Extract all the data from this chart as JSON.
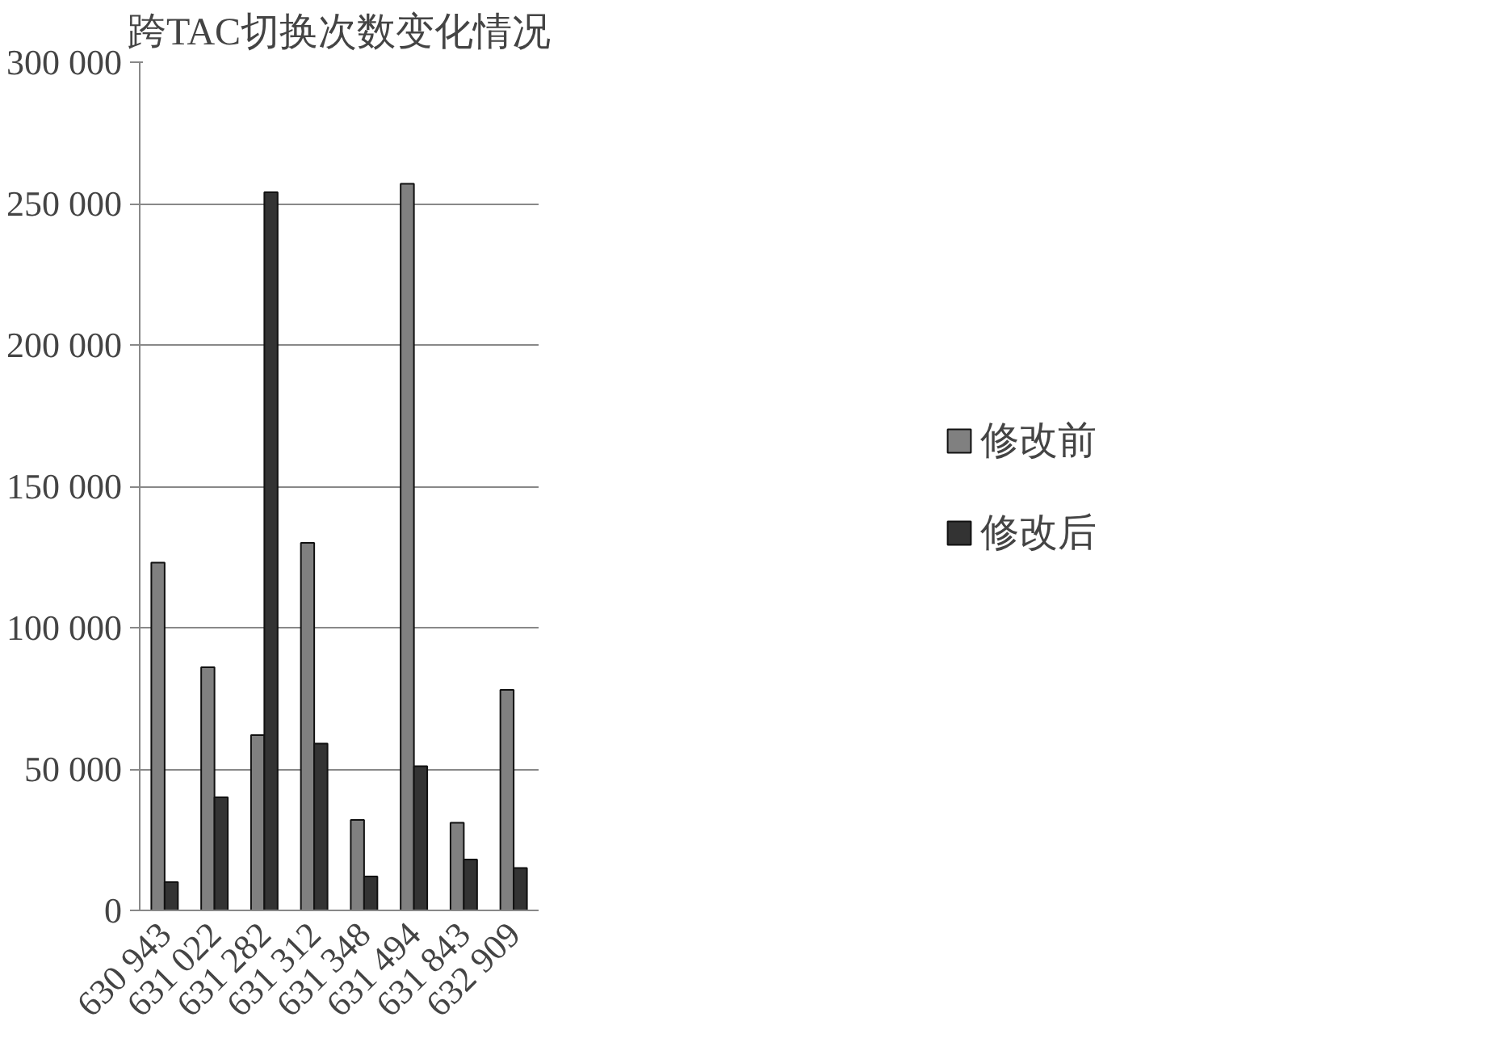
{
  "chart_data": {
    "type": "bar",
    "title": "跨TAC切换次数变化情况",
    "categories": [
      "630 943",
      "631 022",
      "631 282",
      "631 312",
      "631 348",
      "631 494",
      "631 843",
      "632 909"
    ],
    "series": [
      {
        "name": "修改前",
        "color": "#808080",
        "values": [
          123000,
          86000,
          62000,
          130000,
          32000,
          257000,
          31000,
          78000
        ]
      },
      {
        "name": "修改后",
        "color": "#333333",
        "values": [
          10000,
          40000,
          254000,
          59000,
          12000,
          51000,
          18000,
          15000
        ]
      }
    ],
    "ylim": [
      0,
      300000
    ],
    "yticks": [
      0,
      {
        "value": 50000,
        "label": "50 000"
      },
      {
        "value": 100000,
        "label": "100 000"
      },
      {
        "value": 150000,
        "label": "150 000"
      },
      {
        "value": 200000,
        "label": "200 000"
      },
      {
        "value": 250000,
        "label": "250 000"
      },
      {
        "value": 300000,
        "label": "300 000"
      }
    ],
    "grid": "y",
    "legend": "right"
  }
}
